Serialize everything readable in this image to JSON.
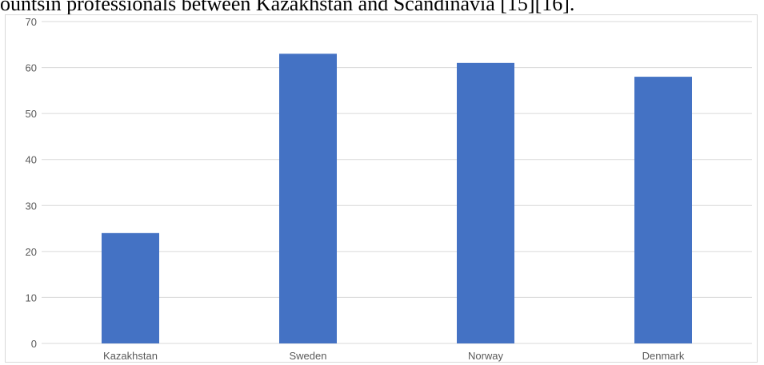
{
  "caption": "ountsin professionals between Kazakhstan and Scandinavia [15][16].",
  "colors": {
    "bar": "#4472C4",
    "grid": "#d9d9d9",
    "axis_text": "#595959"
  },
  "chart_data": {
    "type": "bar",
    "categories": [
      "Kazakhstan",
      "Sweden",
      "Norway",
      "Denmark"
    ],
    "values": [
      24,
      63,
      61,
      58
    ],
    "ylim": [
      0,
      70
    ],
    "yticks": [
      0,
      10,
      20,
      30,
      40,
      50,
      60,
      70
    ],
    "grid": true,
    "legend": "none"
  }
}
